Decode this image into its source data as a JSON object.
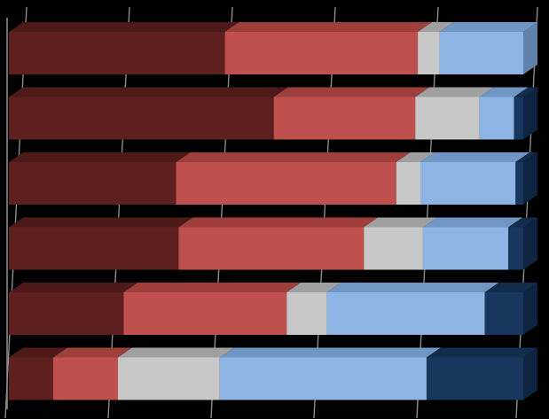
{
  "chart_data": {
    "type": "bar",
    "orientation": "horizontal",
    "stacked": "percent",
    "style": "3d",
    "grid": true,
    "legend": "none",
    "categories": [
      "",
      "",
      "",
      "",
      "",
      ""
    ],
    "xlim": [
      0,
      100
    ],
    "series": [
      {
        "values": [
          42,
          51.5,
          32.5,
          33,
          22.3,
          8.6
        ],
        "color": "#5e1f1f",
        "color_top": "#4d1919",
        "color_side": "#3f1414"
      },
      {
        "values": [
          37.5,
          27.5,
          42.8,
          36,
          31.7,
          12.6
        ],
        "color": "#c0504d",
        "color_top": "#9f3f3c",
        "color_side": "#873532"
      },
      {
        "values": [
          4.2,
          12.5,
          4.7,
          11.5,
          7.8,
          19.8
        ],
        "color": "#c8c8c8",
        "color_top": "#a0a0a0",
        "color_side": "#8c8c8c"
      },
      {
        "values": [
          16.3,
          6.7,
          18.5,
          16.6,
          30.7,
          40.2
        ],
        "color": "#8db4e2",
        "color_top": "#7096c4",
        "color_side": "#5f82ad"
      },
      {
        "values": [
          0,
          1.8,
          1.5,
          2.9,
          7.5,
          18.8
        ],
        "color": "#17375e",
        "color_top": "#122c4b",
        "color_side": "#0e2440"
      }
    ]
  }
}
